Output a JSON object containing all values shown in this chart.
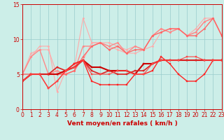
{
  "xlabel": "Vent moyen/en rafales ( km/h )",
  "xlim": [
    0,
    23
  ],
  "ylim": [
    0,
    15
  ],
  "yticks": [
    0,
    5,
    10,
    15
  ],
  "xticks": [
    0,
    1,
    2,
    3,
    4,
    5,
    6,
    7,
    8,
    9,
    10,
    11,
    12,
    13,
    14,
    15,
    16,
    17,
    18,
    19,
    20,
    21,
    22,
    23
  ],
  "background_color": "#cceee8",
  "grid_color": "#99cccc",
  "series": [
    {
      "color": "#ffaaaa",
      "linewidth": 0.8,
      "marker": "D",
      "markersize": 1.5,
      "data": [
        5.0,
        7.5,
        9.0,
        9.0,
        2.5,
        5.5,
        6.0,
        13.0,
        9.5,
        9.5,
        9.0,
        8.5,
        8.0,
        8.0,
        8.5,
        9.0,
        11.0,
        11.5,
        11.5,
        10.5,
        11.0,
        12.5,
        13.0,
        10.5
      ]
    },
    {
      "color": "#ffaaaa",
      "linewidth": 0.8,
      "marker": "D",
      "markersize": 1.5,
      "data": [
        5.0,
        8.0,
        8.5,
        8.5,
        5.0,
        5.5,
        6.5,
        7.0,
        9.5,
        9.5,
        9.5,
        9.0,
        8.5,
        9.0,
        8.5,
        10.5,
        11.5,
        11.0,
        11.5,
        10.5,
        11.5,
        13.0,
        13.0,
        10.5
      ]
    },
    {
      "color": "#ff8888",
      "linewidth": 1.0,
      "marker": "D",
      "markersize": 1.5,
      "data": [
        5.0,
        7.5,
        8.5,
        5.0,
        5.5,
        5.0,
        5.5,
        9.0,
        9.0,
        9.5,
        9.0,
        9.5,
        8.0,
        9.0,
        8.5,
        10.5,
        11.5,
        11.0,
        11.5,
        10.5,
        11.0,
        12.5,
        13.0,
        10.5
      ]
    },
    {
      "color": "#ff6666",
      "linewidth": 1.0,
      "marker": "D",
      "markersize": 1.5,
      "data": [
        5.0,
        5.0,
        5.0,
        5.0,
        5.0,
        5.0,
        5.5,
        7.5,
        9.0,
        9.5,
        8.5,
        9.0,
        8.0,
        8.5,
        8.5,
        10.5,
        11.0,
        11.5,
        11.5,
        10.5,
        10.5,
        11.5,
        13.0,
        10.5
      ]
    },
    {
      "color": "#cc0000",
      "linewidth": 1.5,
      "marker": "s",
      "markersize": 2.0,
      "data": [
        4.0,
        5.0,
        5.0,
        5.0,
        5.0,
        5.5,
        6.0,
        7.0,
        6.0,
        6.0,
        5.5,
        5.5,
        5.5,
        5.0,
        6.5,
        6.5,
        7.0,
        7.0,
        7.0,
        7.0,
        7.0,
        7.0,
        7.0,
        7.0
      ]
    },
    {
      "color": "#dd2222",
      "linewidth": 1.2,
      "marker": "s",
      "markersize": 2.0,
      "data": [
        4.0,
        5.0,
        5.0,
        5.0,
        6.0,
        5.5,
        6.5,
        7.0,
        5.5,
        5.0,
        5.5,
        5.0,
        5.0,
        5.5,
        5.5,
        6.5,
        7.0,
        7.0,
        7.0,
        7.0,
        7.0,
        7.0,
        7.0,
        7.0
      ]
    },
    {
      "color": "#ff2222",
      "linewidth": 1.0,
      "marker": "s",
      "markersize": 1.5,
      "data": [
        4.0,
        5.0,
        5.0,
        3.0,
        4.0,
        5.5,
        6.5,
        7.0,
        4.0,
        3.5,
        3.5,
        3.5,
        3.5,
        5.0,
        5.0,
        5.5,
        7.5,
        6.5,
        5.0,
        4.0,
        4.0,
        5.0,
        7.0,
        7.0
      ]
    },
    {
      "color": "#ff4444",
      "linewidth": 0.8,
      "marker": "s",
      "markersize": 1.5,
      "data": [
        4.0,
        5.0,
        5.0,
        3.0,
        4.0,
        5.5,
        6.0,
        7.0,
        5.0,
        5.0,
        5.0,
        5.5,
        5.5,
        5.0,
        5.0,
        6.5,
        7.0,
        7.0,
        7.0,
        7.5,
        7.5,
        7.0,
        7.0,
        7.0
      ]
    }
  ]
}
